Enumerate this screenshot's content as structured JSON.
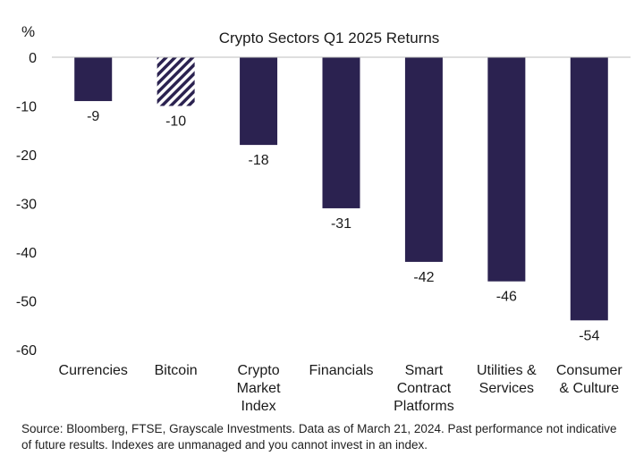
{
  "chart_data": {
    "type": "bar",
    "title": "Crypto Sectors Q1 2025 Returns",
    "unit_label": "%",
    "categories": [
      [
        "Currencies"
      ],
      [
        "Bitcoin"
      ],
      [
        "Crypto",
        "Market",
        "Index"
      ],
      [
        "Financials"
      ],
      [
        "Smart",
        "Contract",
        "Platforms"
      ],
      [
        "Utilities &",
        "Services"
      ],
      [
        "Consumer",
        "& Culture"
      ]
    ],
    "values": [
      -9,
      -10,
      -18,
      -31,
      -42,
      -46,
      -54
    ],
    "data_labels": [
      "-9",
      "-10",
      "-18",
      "-31",
      "-42",
      "-46",
      "-54"
    ],
    "bar_styles": [
      "solid",
      "hatched",
      "solid",
      "solid",
      "solid",
      "solid",
      "solid"
    ],
    "ylim": [
      -60,
      0
    ],
    "yticks": [
      0,
      -10,
      -20,
      -30,
      -40,
      -50,
      -60
    ],
    "grid": false,
    "colors": {
      "bar": "#2b2250",
      "hatch_bg": "#ffffff",
      "axis": "#bdbdbd"
    }
  },
  "source_note": "Source: Bloomberg, FTSE, Grayscale Investments. Data as of March 21, 2024. Past performance not indicative of future results. Indexes are unmanaged and you cannot invest in an index."
}
